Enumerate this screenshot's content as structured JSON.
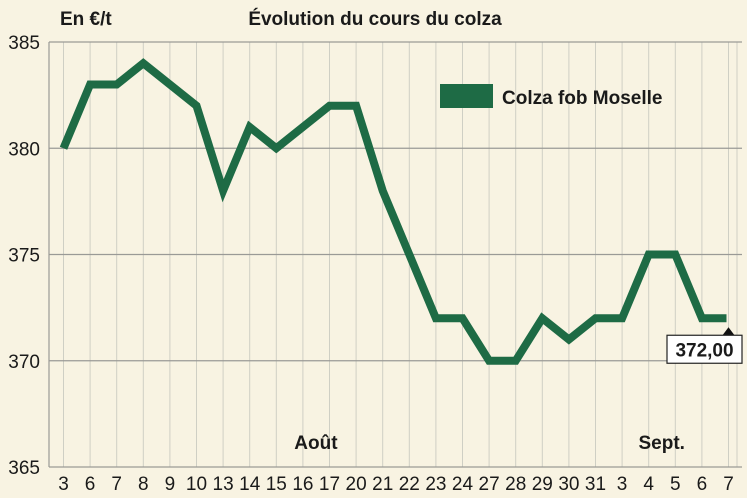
{
  "chart_data": {
    "type": "line",
    "title": "Évolution du cours du colza",
    "ylabel": "En €/t",
    "ylim": [
      365,
      385
    ],
    "yticks": [
      365,
      370,
      375,
      380,
      385
    ],
    "categories": [
      "3",
      "6",
      "7",
      "8",
      "9",
      "10",
      "13",
      "14",
      "15",
      "16",
      "17",
      "20",
      "21",
      "22",
      "23",
      "24",
      "27",
      "28",
      "29",
      "30",
      "31",
      "3",
      "4",
      "5",
      "6",
      "7"
    ],
    "month_labels": [
      {
        "label": "Août",
        "at_index": 9
      },
      {
        "label": "Sept.",
        "at_index": 22
      }
    ],
    "series": [
      {
        "name": "Colza fob Moselle",
        "color": "#1e6b45",
        "values": [
          380,
          383,
          383,
          384,
          383,
          382,
          378,
          381,
          380,
          381,
          382,
          382,
          378,
          375,
          372,
          372,
          370,
          370,
          372,
          371,
          372,
          372,
          375,
          375,
          372,
          372
        ]
      }
    ],
    "annotation": {
      "text": "372,00",
      "at_index": 25
    },
    "grid": true,
    "legend_position": "top-right"
  }
}
